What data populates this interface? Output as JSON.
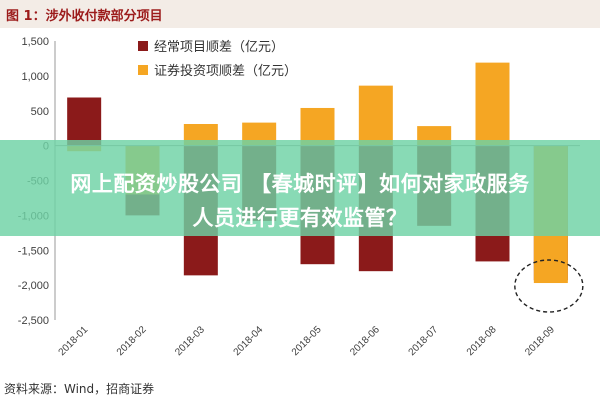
{
  "header": {
    "title": "图 1：涉外收付款部分项目"
  },
  "overlay": {
    "line1": "网上配资炒股公司 【春城时评】如何对家政服务",
    "line2": "人员进行更有效监管？"
  },
  "footer": {
    "source": "资料来源：Wind，招商证券"
  },
  "colors": {
    "series1": "#8b1a1a",
    "series2": "#f5a623",
    "title": "#9c1b1b"
  },
  "chart_data": {
    "type": "bar",
    "categories": [
      "2018-01",
      "2018-02",
      "2018-03",
      "2018-04",
      "2018-05",
      "2018-06",
      "2018-07",
      "2018-08",
      "2018-09"
    ],
    "series": [
      {
        "name": "经常项目顺差（亿元）",
        "values": [
          690,
          -1000,
          -1860,
          -1080,
          -1700,
          -1800,
          -1150,
          -1660,
          -1930
        ]
      },
      {
        "name": "证券投资项顺差（亿元）",
        "values": [
          -80,
          -700,
          310,
          330,
          540,
          860,
          280,
          1190,
          -1970
        ]
      }
    ],
    "ylim": [
      -2500,
      1500
    ],
    "yticks": [
      1500,
      1000,
      500,
      0,
      -500,
      -1000,
      -1500,
      -2000,
      -2500
    ],
    "ytick_labels": [
      "1,500",
      "1,000",
      "500",
      "0",
      "-500",
      "-1,000",
      "-1,500",
      "-2,000",
      "-2,500"
    ],
    "legend_position": "top-center",
    "annotation": "dashed circle around 2018-09 bars"
  }
}
